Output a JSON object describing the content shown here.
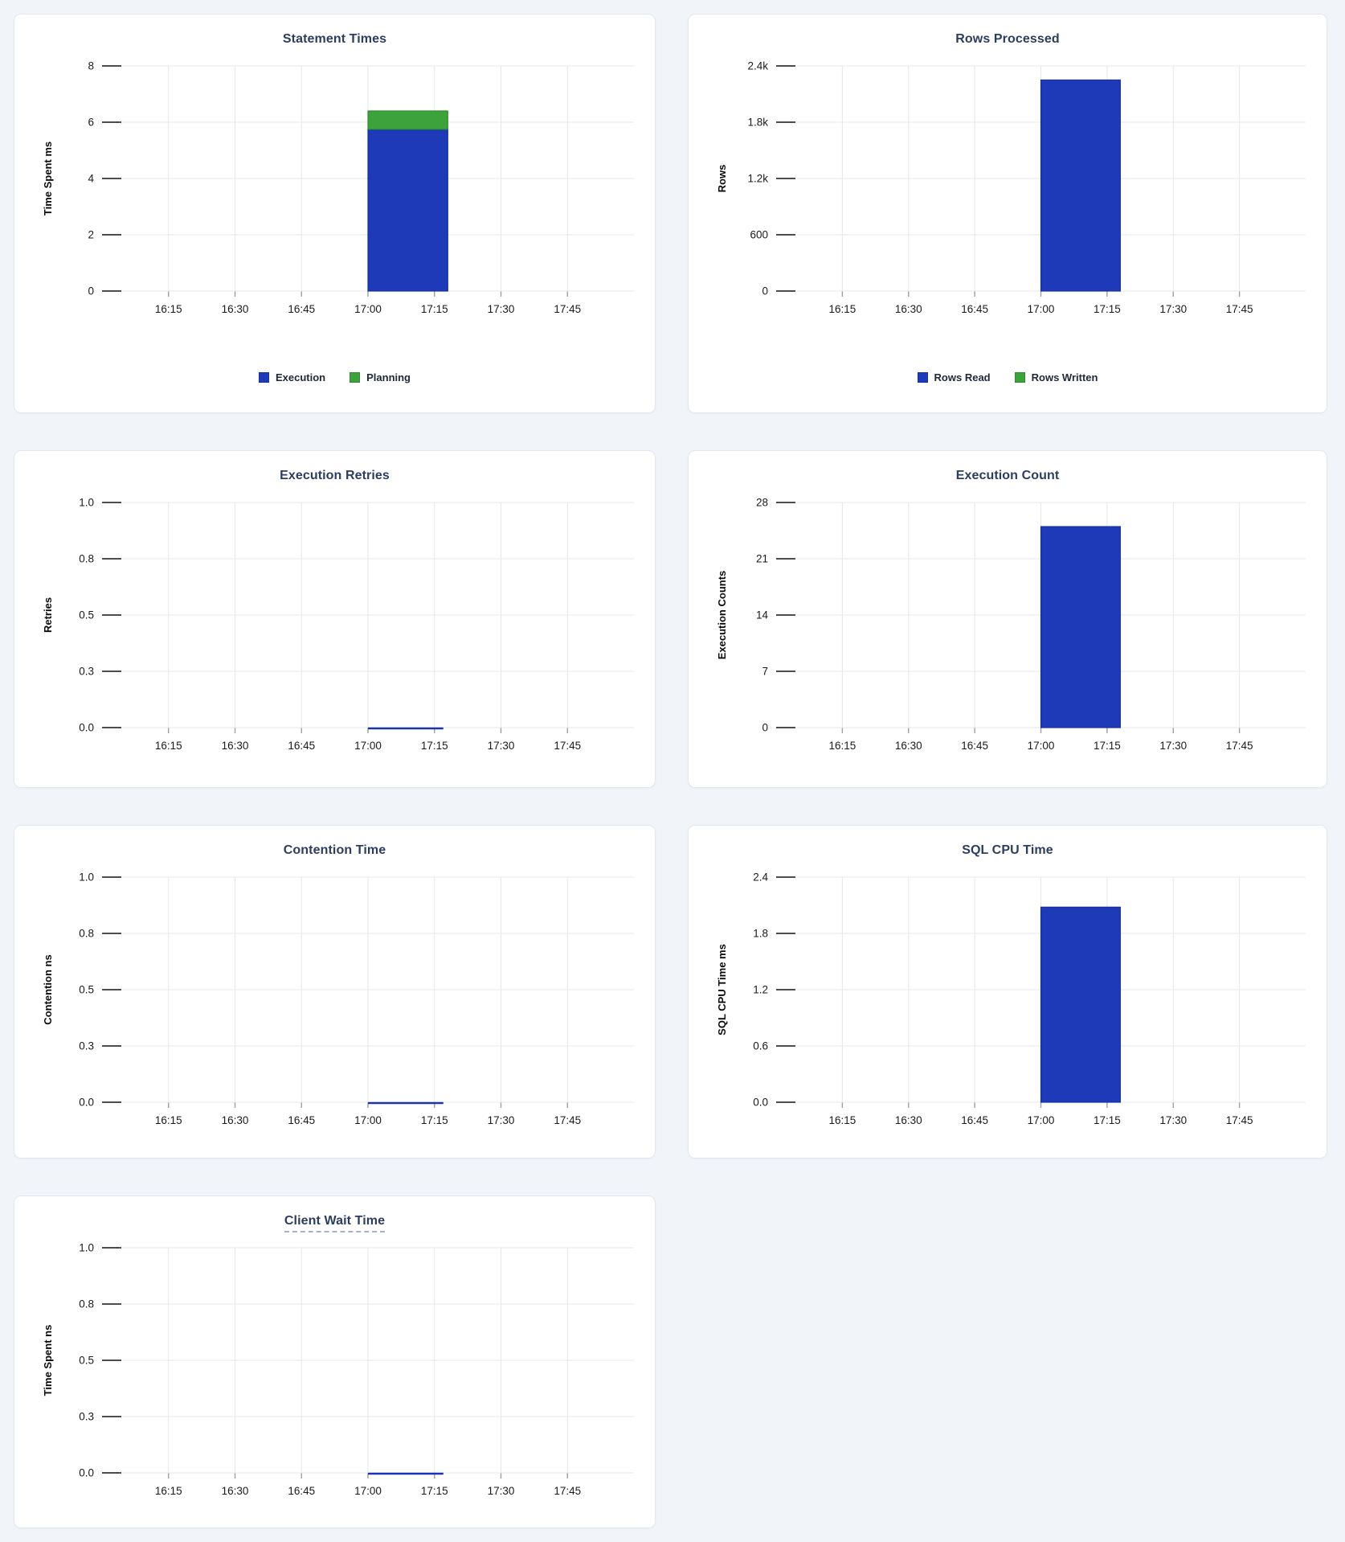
{
  "palette": {
    "blue": "#1e3ab8",
    "blue_border": "#16309f",
    "green": "#3da23c",
    "green_border": "#2f8c2f",
    "title_color": "#2c3d5e",
    "grid_color": "#e7e7e7",
    "tick_stub_color": "#4d4d4d",
    "axis_text_color": "#1a1a1a",
    "page_background": "#f1f5f9",
    "card_border": "#e3e8ef",
    "underline_color": "#a6b3c4"
  },
  "x_axis": {
    "start": "16:00",
    "end": "18:00",
    "ticks": [
      "16:15",
      "16:30",
      "16:45",
      "17:00",
      "17:15",
      "17:30",
      "17:45"
    ]
  },
  "chart_data": [
    {
      "type": "bar",
      "stacked": true,
      "title": "Statement Times",
      "title_underlined": false,
      "ylabel": "Time Spent ms",
      "ymax": 8,
      "yticks": [
        "0",
        "2",
        "4",
        "6",
        "8"
      ],
      "grid": true,
      "legend_position": "bottom",
      "bar_window": {
        "start": "17:00",
        "end": "17:18"
      },
      "series": [
        {
          "name": "Execution",
          "color": "blue",
          "value": 5.75
        },
        {
          "name": "Planning",
          "color": "green",
          "value": 0.65
        }
      ],
      "legend": [
        {
          "label": "Execution",
          "color": "blue"
        },
        {
          "label": "Planning",
          "color": "green"
        }
      ]
    },
    {
      "type": "bar",
      "stacked": true,
      "title": "Rows Processed",
      "title_underlined": false,
      "ylabel": "Rows",
      "ymax": 2400,
      "yticks": [
        "0",
        "600",
        "1.2k",
        "1.8k",
        "2.4k"
      ],
      "grid": true,
      "legend_position": "bottom",
      "bar_window": {
        "start": "17:00",
        "end": "17:18"
      },
      "series": [
        {
          "name": "Rows Read",
          "color": "blue",
          "value": 2250
        },
        {
          "name": "Rows Written",
          "color": "green",
          "value": 0
        }
      ],
      "legend": [
        {
          "label": "Rows Read",
          "color": "blue"
        },
        {
          "label": "Rows Written",
          "color": "green"
        }
      ]
    },
    {
      "type": "line",
      "title": "Execution Retries",
      "title_underlined": false,
      "ylabel": "Retries",
      "ymax": 1,
      "yticks": [
        "0.0",
        "0.3",
        "0.5",
        "0.8",
        "1.0"
      ],
      "grid": true,
      "line_window": {
        "start": "17:00",
        "end": "17:17"
      },
      "series": [
        {
          "name": "Retries",
          "color": "blue",
          "value": 0
        }
      ],
      "legend": null
    },
    {
      "type": "bar",
      "stacked": true,
      "title": "Execution Count",
      "title_underlined": false,
      "ylabel": "Execution Counts",
      "ymax": 28,
      "yticks": [
        "0",
        "7",
        "14",
        "21",
        "28"
      ],
      "grid": true,
      "bar_window": {
        "start": "17:00",
        "end": "17:18"
      },
      "series": [
        {
          "name": "Execution Count",
          "color": "blue",
          "value": 25
        }
      ],
      "legend": null
    },
    {
      "type": "line",
      "title": "Contention Time",
      "title_underlined": false,
      "ylabel": "Contention ns",
      "ymax": 1,
      "yticks": [
        "0.0",
        "0.3",
        "0.5",
        "0.8",
        "1.0"
      ],
      "grid": true,
      "line_window": {
        "start": "17:00",
        "end": "17:17"
      },
      "series": [
        {
          "name": "Contention",
          "color": "blue",
          "value": 0
        }
      ],
      "legend": null
    },
    {
      "type": "bar",
      "stacked": true,
      "title": "SQL CPU Time",
      "title_underlined": false,
      "ylabel": "SQL CPU Time ms",
      "ymax": 2.4,
      "yticks": [
        "0.0",
        "0.6",
        "1.2",
        "1.8",
        "2.4"
      ],
      "grid": true,
      "bar_window": {
        "start": "17:00",
        "end": "17:18"
      },
      "series": [
        {
          "name": "SQL CPU Time",
          "color": "blue",
          "value": 2.08
        }
      ],
      "legend": null
    },
    {
      "type": "line",
      "title": "Client Wait Time",
      "title_underlined": true,
      "ylabel": "Time Spent ns",
      "ymax": 1,
      "yticks": [
        "0.0",
        "0.3",
        "0.5",
        "0.8",
        "1.0"
      ],
      "grid": true,
      "line_window": {
        "start": "17:00",
        "end": "17:17"
      },
      "series": [
        {
          "name": "Client Wait",
          "color": "blue",
          "value": 0
        }
      ],
      "legend": null
    }
  ]
}
